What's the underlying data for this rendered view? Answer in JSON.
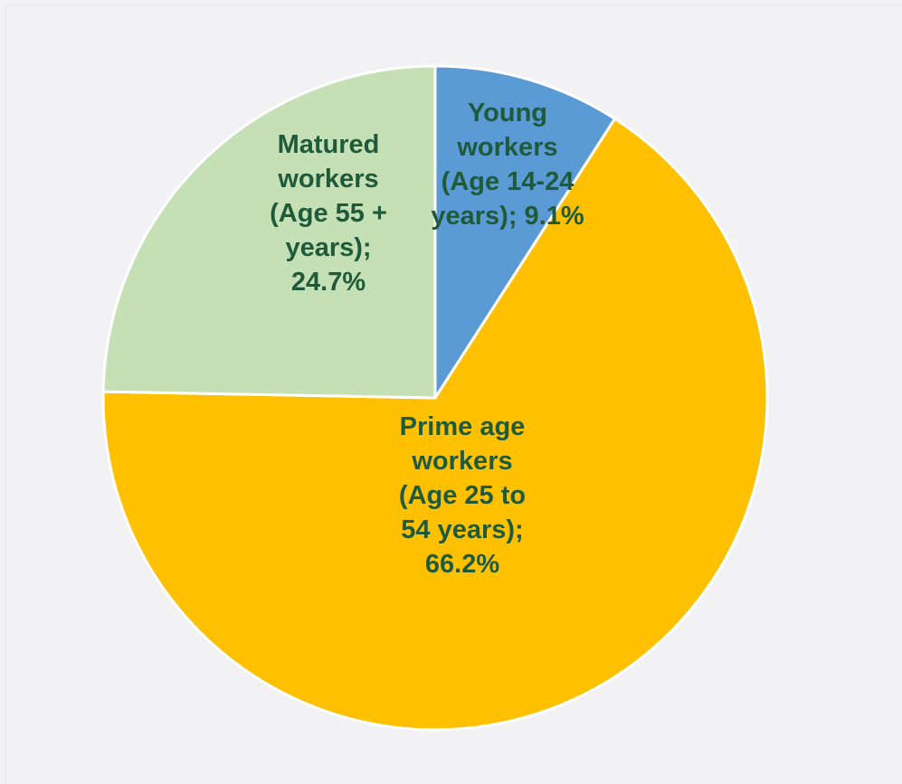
{
  "chart_data": {
    "type": "pie",
    "start_angle_deg": 0,
    "direction": "clockwise",
    "label_color": "#1f5a3a",
    "slice_border_color": "#ffffff",
    "slices": [
      {
        "name": "Young workers (Age 14-24 years)",
        "value": 9.1,
        "color": "#5b9bd5",
        "label_lines": [
          "Young",
          "workers",
          "(Age 14-24",
          "years); 9.1%"
        ]
      },
      {
        "name": "Prime age workers (Age 25 to 54 years)",
        "value": 66.2,
        "color": "#ffc000",
        "label_lines": [
          "Prime age",
          "workers",
          "(Age 25 to",
          "54 years);",
          "66.2%"
        ]
      },
      {
        "name": "Matured workers (Age 55 + years)",
        "value": 24.7,
        "color": "#c5e0b4",
        "label_lines": [
          "Matured",
          "workers",
          "(Age 55 +",
          "years);",
          "24.7%"
        ]
      }
    ]
  }
}
